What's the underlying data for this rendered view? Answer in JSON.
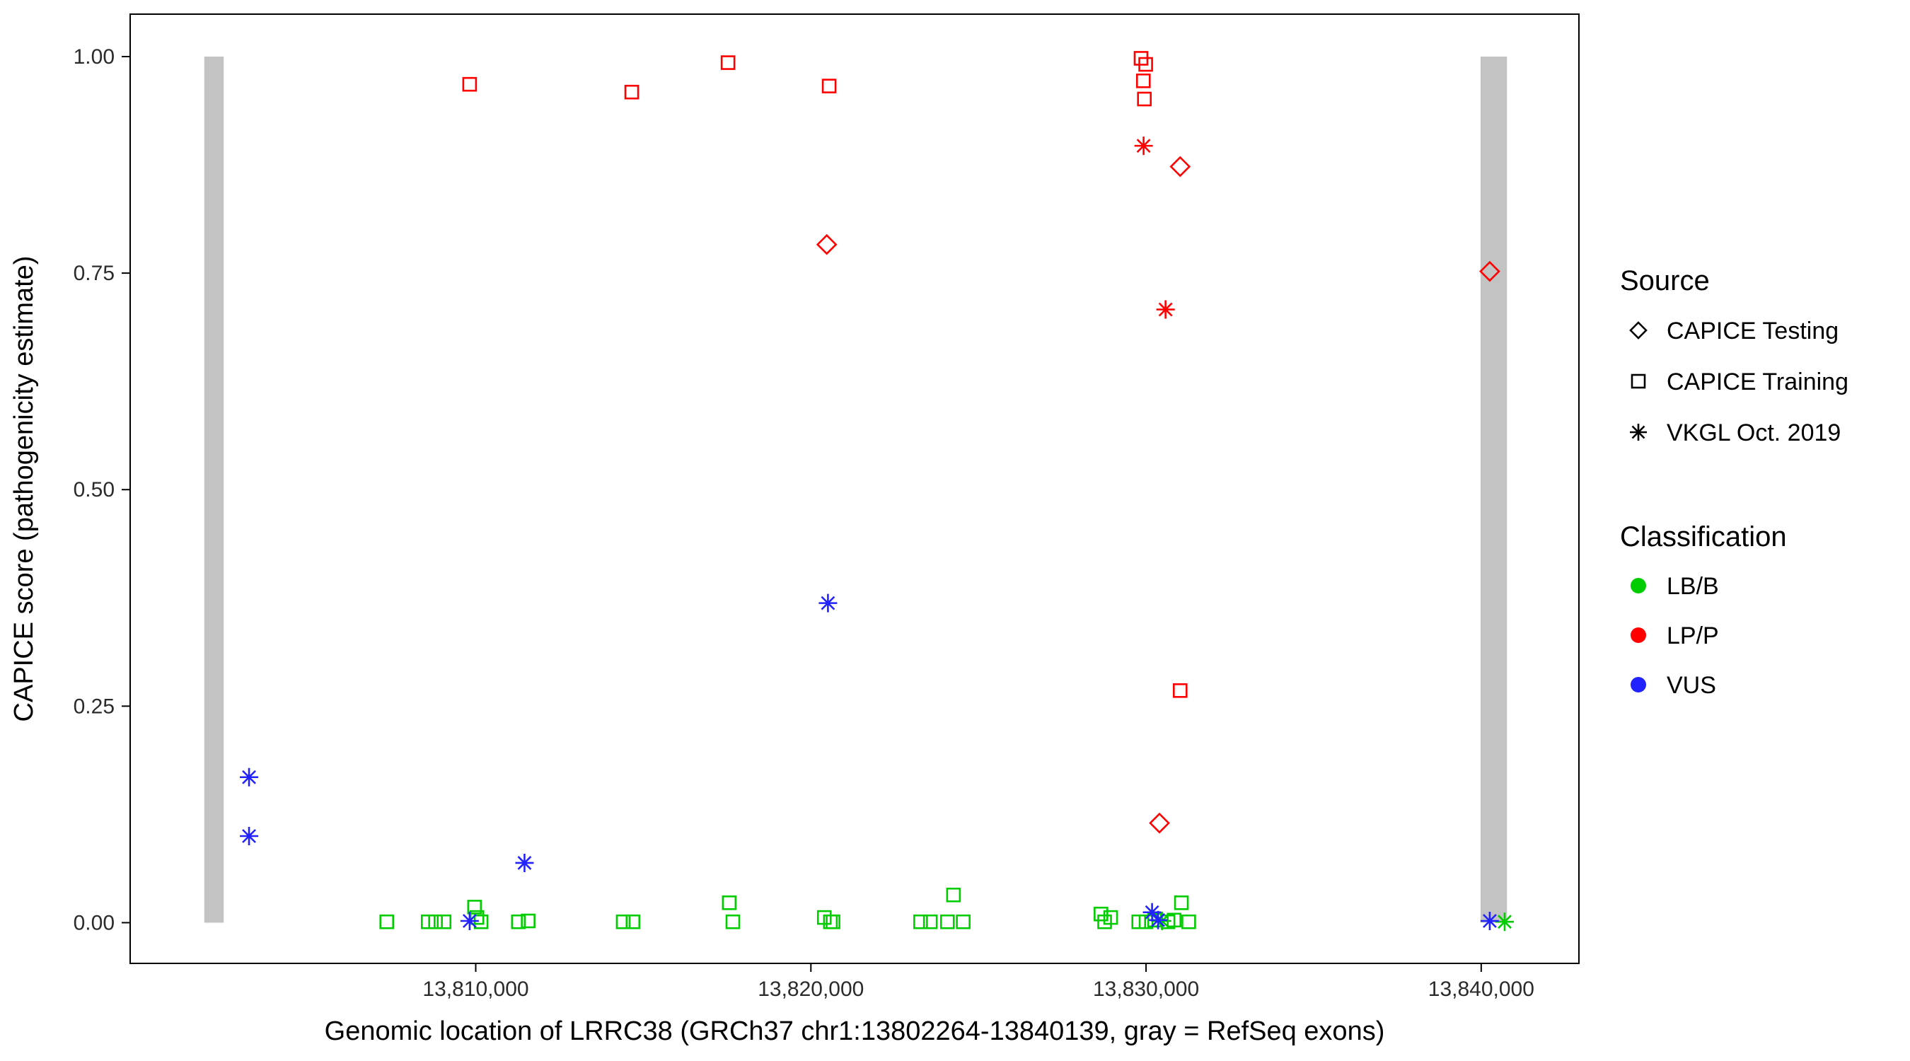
{
  "legend": {
    "source": {
      "title": "Source",
      "items": [
        {
          "label": "CAPICE Testing",
          "shape": "diamond"
        },
        {
          "label": "CAPICE Training",
          "shape": "square"
        },
        {
          "label": "VKGL Oct. 2019",
          "shape": "asterisk"
        }
      ]
    },
    "classification": {
      "title": "Classification",
      "items": [
        {
          "label": "LB/B",
          "color": "#00cc00"
        },
        {
          "label": "LP/P",
          "color": "#ff0000"
        },
        {
          "label": "VUS",
          "color": "#2222ff"
        }
      ]
    }
  },
  "chart_data": {
    "type": "scatter",
    "title": "",
    "xlabel": "Genomic location of LRRC38 (GRCh37 chr1:13802264-13840139, gray = RefSeq exons)",
    "ylabel": "CAPICE score (pathogenicity estimate)",
    "xlim": [
      13799689,
      13842916
    ],
    "ylim": [
      -0.047,
      1.049
    ],
    "grid": false,
    "legend_position": "right",
    "x_ticks": [
      {
        "value": 13810000,
        "label": "13,810,000"
      },
      {
        "value": 13820000,
        "label": "13,820,000"
      },
      {
        "value": 13830000,
        "label": "13,830,000"
      },
      {
        "value": 13840000,
        "label": "13,840,000"
      }
    ],
    "y_ticks": [
      {
        "value": 0.0,
        "label": "0.00"
      },
      {
        "value": 0.25,
        "label": "0.25"
      },
      {
        "value": 0.5,
        "label": "0.50"
      },
      {
        "value": 0.75,
        "label": "0.75"
      },
      {
        "value": 1.0,
        "label": "1.00"
      }
    ],
    "exon_color": "#c3c3c3",
    "exons_gray": [
      {
        "start": 13801900,
        "end": 13802480
      },
      {
        "start": 13839980,
        "end": 13840770
      }
    ],
    "series": [
      {
        "name": "CAPICE Training - LB/B",
        "source": "CAPICE Training",
        "classification": "LB/B",
        "shape": "square",
        "color": "#00cc00",
        "points": [
          [
            13807345,
            0.001
          ],
          [
            13808582,
            0.001
          ],
          [
            13808800,
            0.001
          ],
          [
            13809055,
            0.001
          ],
          [
            13809964,
            0.018
          ],
          [
            13810036,
            0.006
          ],
          [
            13810160,
            0.001
          ],
          [
            13811273,
            0.001
          ],
          [
            13811564,
            0.002
          ],
          [
            13814400,
            0.001
          ],
          [
            13814691,
            0.001
          ],
          [
            13817564,
            0.023
          ],
          [
            13817673,
            0.001
          ],
          [
            13820400,
            0.006
          ],
          [
            13820582,
            0.001
          ],
          [
            13820660,
            0.001
          ],
          [
            13823273,
            0.001
          ],
          [
            13823564,
            0.001
          ],
          [
            13824073,
            0.001
          ],
          [
            13824255,
            0.032
          ],
          [
            13824545,
            0.001
          ],
          [
            13828655,
            0.01
          ],
          [
            13828764,
            0.001
          ],
          [
            13828945,
            0.006
          ],
          [
            13829782,
            0.001
          ],
          [
            13830000,
            0.001
          ],
          [
            13830255,
            0.003
          ],
          [
            13830655,
            0.001
          ],
          [
            13830836,
            0.003
          ],
          [
            13831055,
            0.023
          ],
          [
            13831273,
            0.001
          ]
        ]
      },
      {
        "name": "VKGL Oct. 2019 - LB/B",
        "source": "VKGL Oct. 2019",
        "classification": "LB/B",
        "shape": "asterisk",
        "color": "#00cc00",
        "points": [
          [
            13830480,
            0.002
          ],
          [
            13840700,
            0.001
          ]
        ]
      },
      {
        "name": "VKGL Oct. 2019 - VUS",
        "source": "VKGL Oct. 2019",
        "classification": "VUS",
        "shape": "asterisk",
        "color": "#2222ff",
        "points": [
          [
            13803236,
            0.168
          ],
          [
            13803236,
            0.1
          ],
          [
            13811455,
            0.069
          ],
          [
            13820509,
            0.369
          ],
          [
            13809818,
            0.002
          ],
          [
            13830180,
            0.012
          ],
          [
            13830360,
            0.003
          ],
          [
            13840255,
            0.002
          ]
        ]
      },
      {
        "name": "CAPICE Training - LP/P",
        "source": "CAPICE Training",
        "classification": "LP/P",
        "shape": "square",
        "color": "#ff0000",
        "points": [
          [
            13809818,
            0.968
          ],
          [
            13814655,
            0.959
          ],
          [
            13817527,
            0.993
          ],
          [
            13820545,
            0.966
          ],
          [
            13829850,
            0.998
          ],
          [
            13829990,
            0.991
          ],
          [
            13829920,
            0.972
          ],
          [
            13829950,
            0.951
          ],
          [
            13831018,
            0.268
          ]
        ]
      },
      {
        "name": "CAPICE Testing - LP/P",
        "source": "CAPICE Testing",
        "classification": "LP/P",
        "shape": "diamond",
        "color": "#ff0000",
        "points": [
          [
            13820473,
            0.783
          ],
          [
            13831018,
            0.873
          ],
          [
            13830400,
            0.115
          ],
          [
            13840255,
            0.752
          ]
        ]
      },
      {
        "name": "VKGL Oct. 2019 - LP/P",
        "source": "VKGL Oct. 2019",
        "classification": "LP/P",
        "shape": "asterisk",
        "color": "#ff0000",
        "points": [
          [
            13829927,
            0.897
          ],
          [
            13830582,
            0.708
          ]
        ]
      }
    ]
  }
}
